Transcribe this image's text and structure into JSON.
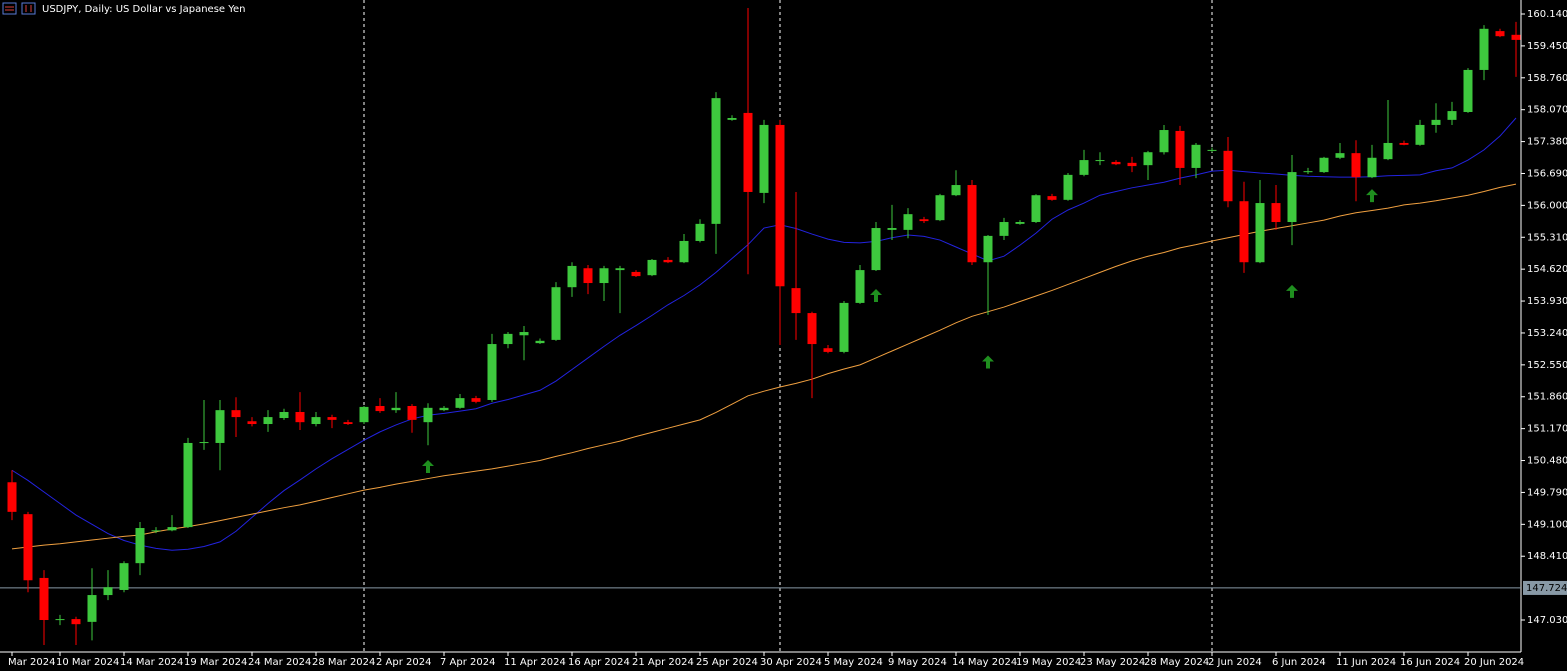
{
  "chart_data": {
    "type": "candlestick",
    "title": "USDJPY, Daily: US Dollar vs Japanese Yen",
    "up_color": "#3ec83e",
    "down_color": "#ff0000",
    "categories": [
      "Mar 2024",
      null,
      null,
      "10 Mar 2024",
      null,
      null,
      null,
      "14 Mar 2024",
      null,
      null,
      null,
      "19 Mar 2024",
      null,
      null,
      null,
      "24 Mar 2024",
      null,
      null,
      null,
      "28 Mar 2024",
      null,
      null,
      null,
      "2 Apr 2024",
      null,
      null,
      null,
      "7 Apr 2024",
      null,
      null,
      null,
      "11 Apr 2024",
      null,
      null,
      null,
      "16 Apr 2024",
      null,
      null,
      null,
      "21 Apr 2024",
      null,
      null,
      null,
      "25 Apr 2024",
      null,
      null,
      null,
      "30 Apr 2024",
      null,
      null,
      null,
      "5 May 2024",
      null,
      null,
      null,
      "9 May 2024",
      null,
      null,
      null,
      "14 May 2024",
      null,
      null,
      null,
      "19 May 2024",
      null,
      null,
      null,
      "23 May 2024",
      null,
      null,
      null,
      "28 May 2024",
      null,
      null,
      null,
      "2 Jun 2024",
      null,
      null,
      null,
      "6 Jun 2024",
      null,
      null,
      null,
      "11 Jun 2024",
      null,
      null,
      null,
      "16 Jun 2024",
      null,
      null,
      null,
      "20 Jun 2024",
      null,
      null,
      null
    ],
    "open": [
      150.01,
      149.32,
      147.94,
      147.03,
      147.05,
      146.99,
      147.57,
      147.68,
      148.26,
      148.95,
      148.97,
      149.04,
      150.86,
      150.86,
      151.57,
      151.33,
      151.27,
      151.4,
      151.53,
      151.27,
      151.42,
      151.31,
      151.31,
      151.66,
      151.57,
      151.66,
      151.31,
      151.57,
      151.62,
      151.83,
      151.79,
      153.0,
      153.19,
      153.02,
      153.09,
      154.23,
      154.64,
      154.32,
      154.6,
      154.56,
      154.49,
      154.82,
      154.77,
      155.23,
      155.6,
      157.85,
      158.0,
      156.27,
      157.74,
      154.21,
      153.67,
      152.91,
      152.83,
      153.89,
      154.6,
      155.47,
      155.47,
      155.7,
      155.68,
      156.22,
      156.44,
      154.77,
      155.34,
      155.6,
      155.64,
      156.2,
      156.12,
      156.66,
      156.96,
      156.94,
      156.92,
      156.87,
      157.15,
      157.61,
      156.81,
      157.2,
      157.18,
      156.09,
      154.77,
      156.05,
      155.64,
      156.72,
      156.72,
      157.03,
      157.13,
      156.61,
      157.0,
      157.35,
      157.31,
      157.74,
      157.85,
      158.02,
      158.93,
      159.77,
      159.69
    ],
    "high": [
      150.27,
      149.37,
      148.11,
      147.14,
      147.1,
      148.15,
      148.11,
      148.3,
      149.15,
      149.04,
      149.3,
      150.97,
      151.79,
      151.79,
      151.85,
      151.42,
      151.57,
      151.6,
      151.96,
      151.53,
      151.47,
      151.36,
      151.66,
      151.83,
      151.96,
      151.7,
      151.72,
      151.66,
      151.92,
      151.88,
      153.22,
      153.26,
      153.39,
      153.12,
      154.34,
      154.77,
      154.71,
      154.69,
      154.69,
      154.6,
      154.84,
      154.88,
      155.38,
      155.7,
      158.45,
      157.95,
      160.27,
      157.85,
      157.85,
      156.29,
      153.7,
      152.98,
      153.93,
      154.71,
      155.64,
      156.01,
      155.94,
      155.75,
      156.25,
      156.76,
      156.55,
      155.36,
      155.73,
      155.68,
      156.24,
      156.25,
      156.7,
      157.2,
      157.15,
      156.98,
      157.05,
      157.18,
      157.74,
      157.72,
      157.35,
      157.25,
      157.48,
      156.51,
      156.55,
      156.44,
      157.09,
      156.81,
      157.05,
      157.35,
      157.41,
      157.31,
      158.28,
      157.4,
      157.85,
      158.21,
      158.24,
      158.97,
      159.9,
      159.82,
      159.97
    ],
    "low": [
      149.19,
      147.63,
      146.49,
      146.92,
      146.49,
      146.59,
      147.46,
      147.63,
      148.0,
      148.91,
      148.95,
      149.02,
      150.71,
      150.27,
      150.99,
      151.22,
      151.1,
      151.36,
      151.14,
      151.22,
      151.18,
      151.25,
      151.27,
      151.51,
      151.51,
      151.08,
      150.81,
      151.55,
      151.6,
      151.72,
      151.75,
      152.91,
      152.65,
      153.0,
      153.07,
      154.02,
      154.08,
      153.93,
      153.67,
      154.45,
      154.47,
      154.75,
      154.75,
      155.2,
      154.95,
      157.83,
      154.51,
      156.05,
      152.98,
      153.09,
      151.83,
      152.8,
      152.8,
      153.87,
      154.58,
      155.25,
      155.29,
      155.62,
      155.66,
      156.2,
      154.71,
      153.63,
      155.25,
      155.58,
      155.62,
      156.1,
      156.1,
      156.63,
      156.87,
      156.87,
      156.72,
      156.55,
      157.1,
      156.44,
      156.59,
      157.15,
      155.96,
      154.54,
      154.75,
      155.47,
      155.14,
      156.68,
      156.7,
      157.0,
      156.09,
      156.59,
      156.98,
      157.3,
      157.29,
      157.57,
      157.74,
      158.0,
      158.71,
      159.64,
      158.78
    ],
    "close": [
      149.37,
      147.89,
      147.03,
      147.05,
      146.94,
      147.57,
      147.74,
      148.26,
      149.02,
      148.97,
      149.04,
      150.86,
      150.88,
      151.57,
      151.42,
      151.27,
      151.42,
      151.53,
      151.31,
      151.42,
      151.36,
      151.27,
      151.64,
      151.55,
      151.62,
      151.36,
      151.62,
      151.62,
      151.83,
      151.75,
      153.0,
      153.22,
      153.26,
      153.07,
      154.23,
      154.69,
      154.32,
      154.64,
      154.64,
      154.47,
      154.82,
      154.77,
      155.23,
      155.6,
      158.32,
      157.89,
      156.29,
      157.74,
      154.25,
      153.67,
      153.0,
      152.83,
      153.89,
      154.6,
      155.51,
      155.51,
      155.81,
      155.66,
      156.22,
      156.44,
      154.77,
      155.34,
      155.64,
      155.64,
      156.22,
      156.12,
      156.66,
      156.98,
      156.98,
      156.89,
      156.85,
      157.15,
      157.63,
      156.81,
      157.31,
      157.2,
      156.09,
      154.77,
      156.05,
      155.64,
      156.72,
      156.74,
      157.03,
      157.13,
      156.61,
      157.03,
      157.35,
      157.31,
      157.74,
      157.85,
      158.04,
      158.93,
      159.82,
      159.66,
      159.58
    ],
    "moving_averages": [
      {
        "color": "#2323e0",
        "values": [
          150.27,
          150.05,
          149.8,
          149.55,
          149.3,
          149.1,
          148.9,
          148.75,
          148.65,
          148.58,
          148.54,
          148.56,
          148.62,
          148.72,
          148.95,
          149.25,
          149.55,
          149.83,
          150.06,
          150.3,
          150.52,
          150.72,
          150.92,
          151.1,
          151.25,
          151.38,
          151.46,
          151.5,
          151.55,
          151.6,
          151.72,
          151.8,
          151.9,
          152.0,
          152.2,
          152.45,
          152.7,
          152.95,
          153.19,
          153.4,
          153.62,
          153.85,
          154.05,
          154.28,
          154.55,
          154.85,
          155.15,
          155.51,
          155.58,
          155.5,
          155.38,
          155.27,
          155.2,
          155.19,
          155.22,
          155.3,
          155.36,
          155.33,
          155.25,
          155.1,
          154.95,
          154.8,
          154.9,
          155.14,
          155.4,
          155.7,
          155.9,
          156.05,
          156.22,
          156.3,
          156.38,
          156.44,
          156.5,
          156.59,
          156.66,
          156.74,
          156.76,
          156.73,
          156.7,
          156.68,
          156.65,
          156.63,
          156.62,
          156.61,
          156.61,
          156.62,
          156.64,
          156.65,
          156.66,
          156.75,
          156.81,
          156.98,
          157.2,
          157.5,
          157.89
        ]
      },
      {
        "color": "#f0a040",
        "values": [
          148.57,
          148.61,
          148.65,
          148.68,
          148.72,
          148.76,
          148.8,
          148.84,
          148.87,
          148.94,
          149.0,
          149.05,
          149.11,
          149.18,
          149.25,
          149.32,
          149.39,
          149.46,
          149.52,
          149.6,
          149.68,
          149.76,
          149.84,
          149.9,
          149.97,
          150.03,
          150.09,
          150.15,
          150.2,
          150.25,
          150.3,
          150.36,
          150.42,
          150.48,
          150.57,
          150.65,
          150.74,
          150.82,
          150.9,
          151.0,
          151.09,
          151.18,
          151.27,
          151.36,
          151.52,
          151.7,
          151.88,
          151.98,
          152.07,
          152.15,
          152.24,
          152.36,
          152.46,
          152.55,
          152.7,
          152.85,
          153.0,
          153.15,
          153.3,
          153.46,
          153.6,
          153.7,
          153.8,
          153.92,
          154.04,
          154.16,
          154.29,
          154.42,
          154.55,
          154.68,
          154.8,
          154.9,
          154.98,
          155.08,
          155.15,
          155.23,
          155.3,
          155.37,
          155.44,
          155.5,
          155.56,
          155.62,
          155.68,
          155.77,
          155.84,
          155.89,
          155.94,
          156.01,
          156.05,
          156.1,
          156.16,
          156.22,
          156.3,
          156.39,
          156.46
        ]
      }
    ],
    "signals": [
      null,
      null,
      null,
      null,
      null,
      null,
      null,
      null,
      null,
      null,
      null,
      null,
      null,
      null,
      null,
      null,
      null,
      null,
      null,
      null,
      null,
      null,
      null,
      null,
      null,
      null,
      150.34,
      null,
      null,
      null,
      null,
      null,
      null,
      null,
      null,
      null,
      null,
      null,
      null,
      null,
      null,
      null,
      null,
      null,
      null,
      null,
      null,
      null,
      null,
      null,
      null,
      null,
      null,
      null,
      154.04,
      null,
      null,
      null,
      null,
      null,
      null,
      152.6,
      null,
      null,
      null,
      null,
      null,
      null,
      null,
      null,
      null,
      null,
      null,
      null,
      null,
      null,
      null,
      null,
      null,
      null,
      154.13,
      null,
      null,
      null,
      null,
      156.2,
      null,
      null,
      null,
      null,
      null,
      null,
      null,
      null,
      null
    ],
    "signal_color": "#1f8f1f",
    "period_separators": [
      22,
      48,
      75
    ],
    "hline": 147.724,
    "ylim": [
      146.338,
      160.443
    ],
    "yticks": [
      {
        "value": 160.14,
        "label": "160.140"
      },
      {
        "value": 159.45,
        "label": "159.450"
      },
      {
        "value": 158.76,
        "label": "158.760"
      },
      {
        "value": 158.07,
        "label": "158.070"
      },
      {
        "value": 157.38,
        "label": "157.380"
      },
      {
        "value": 156.69,
        "label": "156.690"
      },
      {
        "value": 156.0,
        "label": "156.000"
      },
      {
        "value": 155.31,
        "label": "155.310"
      },
      {
        "value": 154.62,
        "label": "154.620"
      },
      {
        "value": 153.93,
        "label": "153.930"
      },
      {
        "value": 153.24,
        "label": "153.240"
      },
      {
        "value": 152.55,
        "label": "152.550"
      },
      {
        "value": 151.86,
        "label": "151.860"
      },
      {
        "value": 151.17,
        "label": "151.170"
      },
      {
        "value": 150.48,
        "label": "150.480"
      },
      {
        "value": 149.79,
        "label": "149.790"
      },
      {
        "value": 149.1,
        "label": "149.100"
      },
      {
        "value": 148.41,
        "label": "148.410"
      },
      {
        "value": 147.03,
        "label": "147.030"
      }
    ]
  }
}
